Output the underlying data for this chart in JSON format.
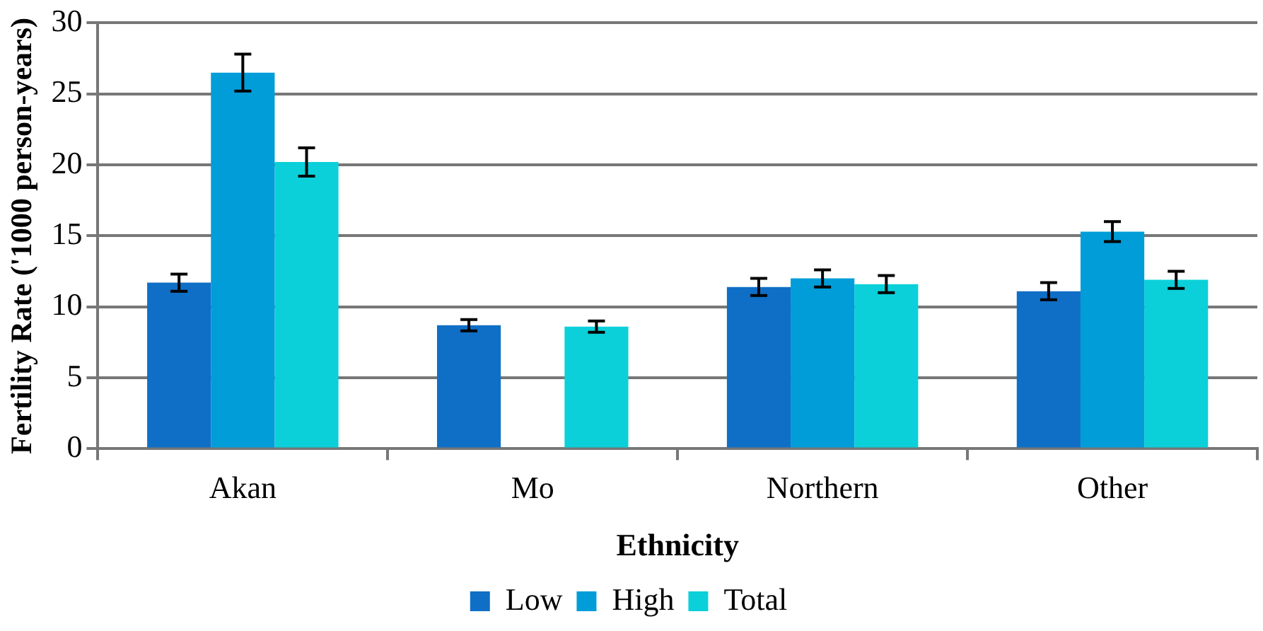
{
  "chart_data": {
    "type": "bar",
    "xlabel": "Ethnicity",
    "ylabel": "Fertility Rate ('1000 person-years)",
    "categories": [
      "Akan",
      "Mo",
      "Northern",
      "Other"
    ],
    "series": [
      {
        "name": "Low",
        "color": "#0f6fc6",
        "values": [
          11.7,
          8.7,
          11.4,
          11.1
        ],
        "errors": [
          0.6,
          0.4,
          0.6,
          0.6
        ]
      },
      {
        "name": "High",
        "color": "#009dd9",
        "values": [
          26.5,
          null,
          12.0,
          15.3
        ],
        "errors": [
          1.3,
          null,
          0.6,
          0.7
        ]
      },
      {
        "name": "Total",
        "color": "#0bd0d9",
        "values": [
          20.2,
          8.6,
          11.6,
          11.9
        ],
        "errors": [
          1.0,
          0.4,
          0.6,
          0.6
        ]
      }
    ],
    "ylim": [
      0,
      30
    ],
    "yticks": [
      0,
      5,
      10,
      15,
      20,
      25,
      30
    ],
    "grid": "y",
    "legend": "bottom"
  }
}
